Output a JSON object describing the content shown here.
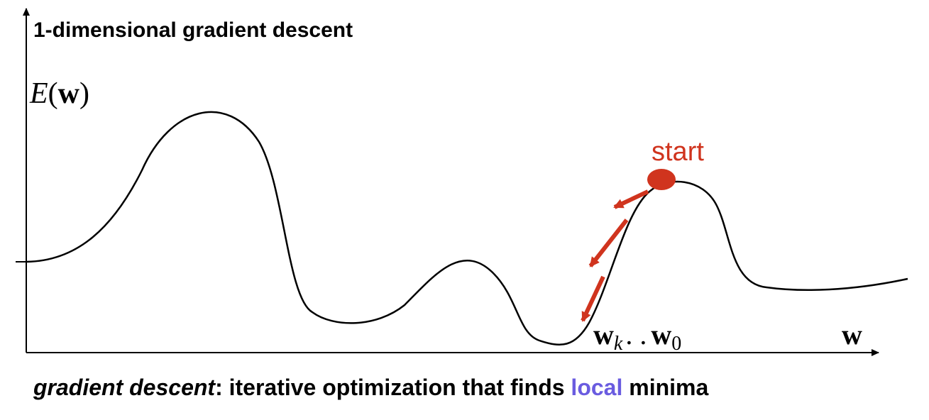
{
  "title": "1-dimensional gradient descent",
  "y_axis_label": {
    "var": "E",
    "open": "(",
    "arg": "w",
    "close": ")"
  },
  "x_axis_label": "w",
  "start_label": "start",
  "iterates_label": {
    "wk": "w",
    "k_sub": "k",
    "dots": ". .",
    "w0": "w",
    "zero_sub": "0"
  },
  "caption": {
    "term": "gradient descent",
    "colon": ":",
    "middle": " iterative optimization that finds ",
    "highlight": "local",
    "end": " minima"
  },
  "colors": {
    "curve": "#000000",
    "accent": "#d0341e",
    "highlight": "#6a5ce0"
  }
}
